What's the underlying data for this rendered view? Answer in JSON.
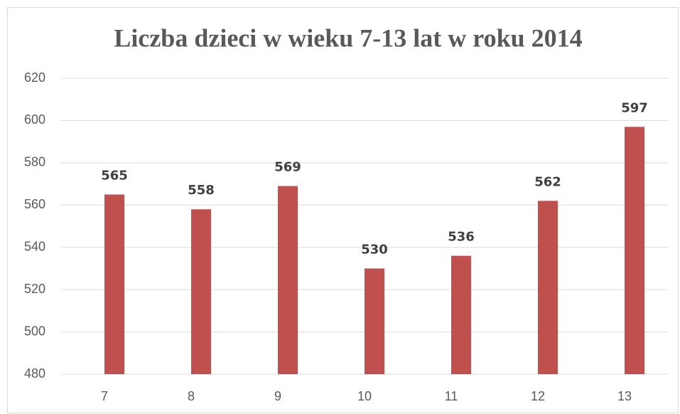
{
  "chart_data": {
    "type": "bar",
    "title": "Liczba dzieci w wieku 7-13 lat w roku 2014",
    "categories": [
      "7",
      "8",
      "9",
      "10",
      "11",
      "12",
      "13"
    ],
    "values": [
      565,
      558,
      569,
      530,
      536,
      562,
      597
    ],
    "color": "#c0504d",
    "ylim": [
      480,
      620
    ],
    "yticks": [
      480,
      500,
      520,
      540,
      560,
      580,
      600,
      620
    ],
    "grid": true
  }
}
